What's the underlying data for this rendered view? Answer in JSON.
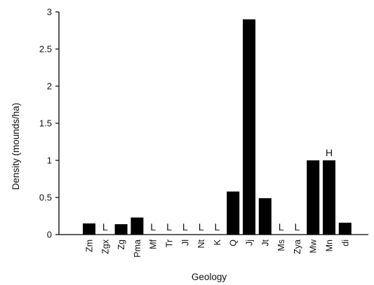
{
  "chart_data": {
    "type": "bar",
    "title": "",
    "xlabel": "Geology",
    "ylabel": "Density (mounds/ha)",
    "ylim": [
      0,
      3
    ],
    "yticks": [
      "0",
      "0.5",
      "1",
      "1.5",
      "2",
      "2.5",
      "3"
    ],
    "grid": false,
    "legend": "none",
    "bar_color": "#000000",
    "categories": [
      "Zm",
      "Zgx",
      "Zg",
      "Pma",
      "Mf",
      "Tr",
      "Jl",
      "Nt",
      "K",
      "Q",
      "Jj",
      "Jt",
      "Ms",
      "Zya",
      "Mw",
      "Mn",
      "di"
    ],
    "values": [
      0.15,
      0,
      0.14,
      0.23,
      0,
      0,
      0,
      0,
      0,
      0.58,
      2.9,
      0.49,
      0,
      0,
      1.0,
      1.0,
      0.16
    ],
    "annotations": [
      "",
      "L",
      "",
      "",
      "L",
      "L",
      "L",
      "L",
      "L",
      "",
      "",
      "",
      "L",
      "L",
      "",
      "H",
      ""
    ]
  }
}
